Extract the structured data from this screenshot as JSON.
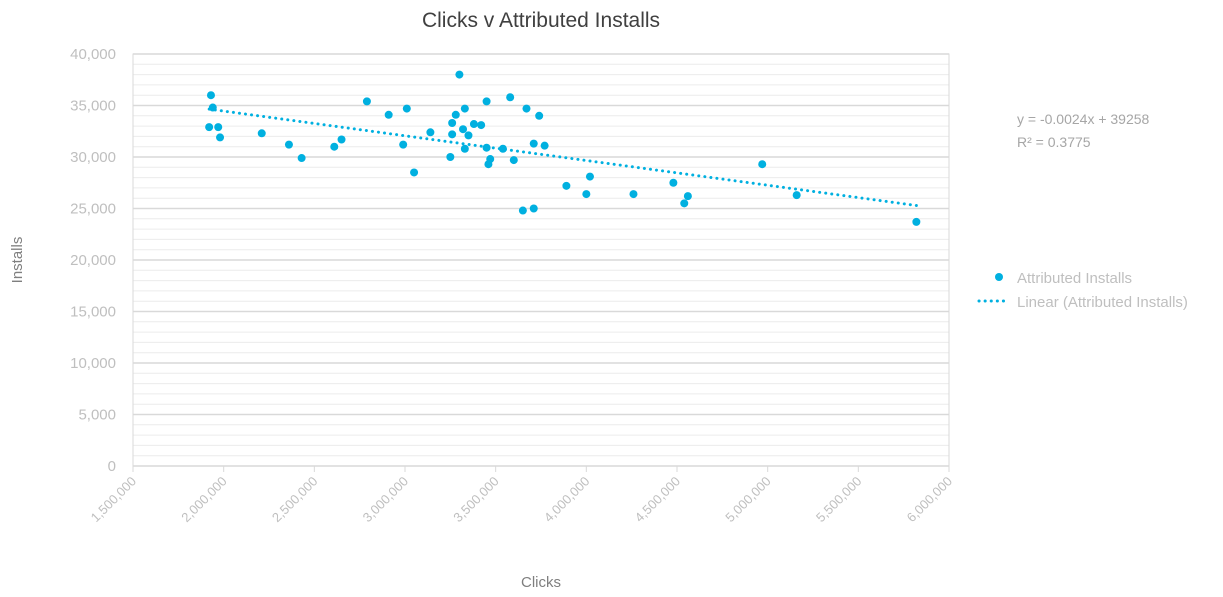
{
  "chart_data": {
    "type": "scatter",
    "title": "Clicks v Attributed Installs",
    "xlabel": "Clicks",
    "ylabel": "Installs",
    "xlim": [
      1500000,
      6000000
    ],
    "ylim": [
      0,
      40000
    ],
    "x_ticks": [
      "1,500,000",
      "2,000,000",
      "2,500,000",
      "3,000,000",
      "3,500,000",
      "4,000,000",
      "4,500,000",
      "5,000,000",
      "5,500,000",
      "6,000,000"
    ],
    "y_ticks": [
      "0",
      "5,000",
      "10,000",
      "15,000",
      "20,000",
      "25,000",
      "30,000",
      "35,000",
      "40,000"
    ],
    "grid": true,
    "legend_position": "right",
    "series": [
      {
        "name": "Attributed Installs",
        "color": "#00b0e0",
        "points": [
          [
            1930000,
            36000
          ],
          [
            1940000,
            34800
          ],
          [
            1920000,
            32900
          ],
          [
            1970000,
            32900
          ],
          [
            1980000,
            31900
          ],
          [
            2210000,
            32300
          ],
          [
            2360000,
            31200
          ],
          [
            2430000,
            29900
          ],
          [
            2610000,
            31000
          ],
          [
            2650000,
            31700
          ],
          [
            2790000,
            35400
          ],
          [
            2910000,
            34100
          ],
          [
            2990000,
            31200
          ],
          [
            3010000,
            34700
          ],
          [
            3050000,
            28500
          ],
          [
            3140000,
            32400
          ],
          [
            3250000,
            30000
          ],
          [
            3260000,
            33300
          ],
          [
            3260000,
            32200
          ],
          [
            3280000,
            34100
          ],
          [
            3300000,
            38000
          ],
          [
            3320000,
            32700
          ],
          [
            3330000,
            34700
          ],
          [
            3330000,
            30800
          ],
          [
            3350000,
            32100
          ],
          [
            3380000,
            33200
          ],
          [
            3420000,
            33100
          ],
          [
            3450000,
            35400
          ],
          [
            3450000,
            30900
          ],
          [
            3460000,
            29300
          ],
          [
            3470000,
            29800
          ],
          [
            3540000,
            30800
          ],
          [
            3580000,
            35800
          ],
          [
            3600000,
            29700
          ],
          [
            3650000,
            24800
          ],
          [
            3670000,
            34700
          ],
          [
            3710000,
            25000
          ],
          [
            3710000,
            31300
          ],
          [
            3740000,
            34000
          ],
          [
            3770000,
            31100
          ],
          [
            3890000,
            27200
          ],
          [
            4000000,
            26400
          ],
          [
            4020000,
            28100
          ],
          [
            4260000,
            26400
          ],
          [
            4480000,
            27500
          ],
          [
            4540000,
            25500
          ],
          [
            4560000,
            26200
          ],
          [
            4970000,
            29300
          ],
          [
            5160000,
            26300
          ],
          [
            5820000,
            23700
          ]
        ]
      }
    ],
    "trendline": {
      "name": "Linear (Attributed Installs)",
      "type": "linear",
      "color": "#00b0e0",
      "slope": -0.0024,
      "intercept": 39258,
      "x_range": [
        1920000,
        5820000
      ],
      "equation_label": "y = -0.0024x + 39258",
      "r2_label": "R² = 0.3775"
    }
  }
}
